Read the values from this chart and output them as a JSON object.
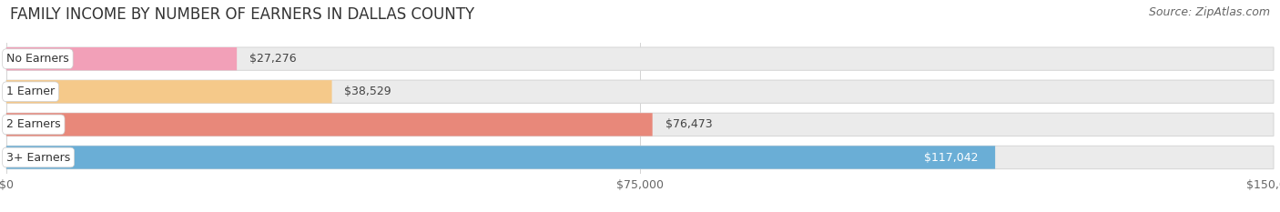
{
  "title": "FAMILY INCOME BY NUMBER OF EARNERS IN DALLAS COUNTY",
  "source": "Source: ZipAtlas.com",
  "categories": [
    "No Earners",
    "1 Earner",
    "2 Earners",
    "3+ Earners"
  ],
  "values": [
    27276,
    38529,
    76473,
    117042
  ],
  "bar_colors": [
    "#f2a0b8",
    "#f5c98a",
    "#e8887a",
    "#6aaed6"
  ],
  "bar_track_color": "#ebebeb",
  "bar_track_edge": "#d8d8d8",
  "label_colors": [
    "#444444",
    "#444444",
    "#444444",
    "#ffffff"
  ],
  "value_colors": [
    "#444444",
    "#444444",
    "#444444",
    "#ffffff"
  ],
  "xlim": [
    0,
    150000
  ],
  "xticks": [
    0,
    75000,
    150000
  ],
  "xtick_labels": [
    "$0",
    "$75,000",
    "$150,000"
  ],
  "background_color": "#ffffff",
  "title_fontsize": 12,
  "source_fontsize": 9,
  "tick_fontsize": 9,
  "value_fontsize": 9,
  "category_fontsize": 9,
  "bar_height": 0.7
}
